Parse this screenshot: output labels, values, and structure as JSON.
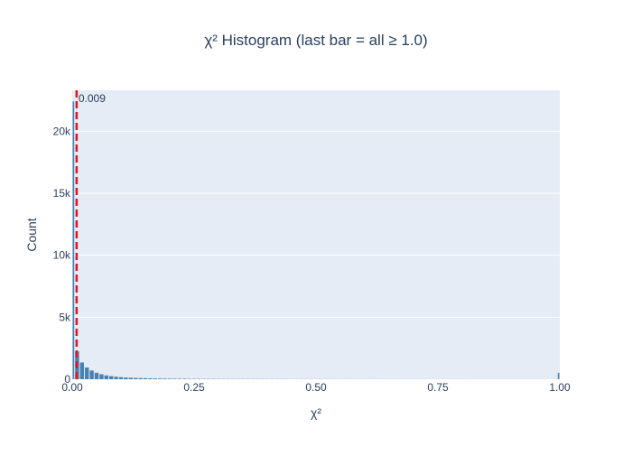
{
  "chart_data": {
    "type": "bar",
    "title": "χ² Histogram (last bar = all ≥ 1.0)",
    "xlabel": "χ²",
    "ylabel": "Count",
    "xlim": [
      0,
      1.0
    ],
    "ylim": [
      0,
      23300
    ],
    "grid": true,
    "bin_width": 0.01,
    "x_ticks": [
      {
        "value": 0,
        "label": "0.00"
      },
      {
        "value": 0.25,
        "label": "0.25"
      },
      {
        "value": 0.5,
        "label": "0.50"
      },
      {
        "value": 0.75,
        "label": "0.75"
      },
      {
        "value": 1.0,
        "label": "1.00"
      }
    ],
    "y_ticks": [
      {
        "value": 0,
        "label": "0"
      },
      {
        "value": 5000,
        "label": "5k"
      },
      {
        "value": 10000,
        "label": "10k"
      },
      {
        "value": 15000,
        "label": "15k"
      },
      {
        "value": 20000,
        "label": "20k"
      }
    ],
    "bins": [
      0,
      0.01,
      0.02,
      0.03,
      0.04,
      0.05,
      0.06,
      0.07,
      0.08,
      0.09,
      0.1,
      0.11,
      0.12,
      0.13,
      0.14,
      0.15,
      0.16,
      0.17,
      0.18,
      0.19,
      0.2,
      0.21,
      0.22,
      0.23,
      0.24,
      0.25,
      0.26,
      0.27,
      0.28,
      0.29,
      0.3,
      0.31,
      0.32,
      0.33,
      0.34,
      0.35,
      0.36,
      0.37,
      0.38,
      0.39,
      0.4,
      0.41,
      0.42,
      0.43,
      0.44,
      0.45,
      0.46,
      0.47,
      0.48,
      0.49,
      0.5,
      0.51,
      0.52,
      0.53,
      0.54,
      0.55,
      0.56,
      0.57,
      0.58,
      0.59,
      0.6,
      0.61,
      0.62,
      0.63,
      0.64,
      0.65,
      0.66,
      0.67,
      0.68,
      0.69,
      0.7,
      0.71,
      0.72,
      0.73,
      0.74,
      0.75,
      0.76,
      0.77,
      0.78,
      0.79,
      0.8,
      0.81,
      0.82,
      0.83,
      0.84,
      0.85,
      0.86,
      0.87,
      0.88,
      0.89,
      0.9,
      0.91,
      0.92,
      0.93,
      0.94,
      0.95,
      0.96,
      0.97,
      0.98,
      0.99,
      1.0
    ],
    "counts": [
      22400,
      2250,
      1350,
      950,
      700,
      520,
      400,
      310,
      250,
      200,
      165,
      140,
      120,
      105,
      92,
      82,
      73,
      65,
      58,
      52,
      47,
      43,
      39,
      36,
      33,
      30,
      28,
      26,
      24,
      22,
      21,
      20,
      19,
      18,
      17,
      16,
      15,
      14,
      14,
      13,
      12,
      12,
      11,
      11,
      10,
      10,
      10,
      9,
      9,
      9,
      8,
      8,
      8,
      8,
      7,
      7,
      7,
      7,
      6,
      6,
      6,
      6,
      6,
      6,
      5,
      5,
      5,
      5,
      5,
      5,
      5,
      5,
      4,
      4,
      4,
      4,
      4,
      4,
      4,
      4,
      4,
      4,
      3,
      3,
      3,
      3,
      3,
      3,
      3,
      3,
      3,
      3,
      3,
      3,
      3,
      3,
      3,
      3,
      3,
      3,
      520
    ],
    "bar_color": "#4682b4",
    "threshold": {
      "value": 0.009,
      "label": "0.009",
      "color": "#e8121b",
      "style": "dashed"
    }
  },
  "colors": {
    "plot_background": "#e5ecf6",
    "grid": "#ffffff",
    "text": "#2a3f5f"
  }
}
